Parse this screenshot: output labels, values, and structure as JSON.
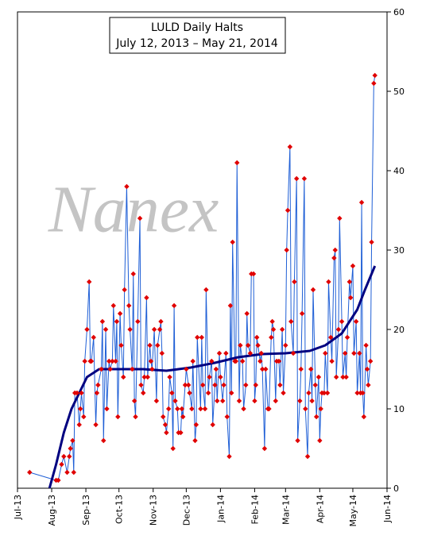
{
  "chart_data": {
    "type": "line",
    "title": "LULD Daily Halts",
    "subtitle": "July 12, 2013 – May 21, 2014",
    "watermark": "Nanex",
    "xlim": [
      0,
      335
    ],
    "xticks": [
      {
        "value": 0,
        "label": "Jul-13"
      },
      {
        "value": 31,
        "label": "Aug-13"
      },
      {
        "value": 62,
        "label": "Sep-13"
      },
      {
        "value": 92,
        "label": "Oct-13"
      },
      {
        "value": 123,
        "label": "Nov-13"
      },
      {
        "value": 153,
        "label": "Dec-13"
      },
      {
        "value": 184,
        "label": "Jan-14"
      },
      {
        "value": 215,
        "label": "Feb-14"
      },
      {
        "value": 243,
        "label": "Mar-14"
      },
      {
        "value": 274,
        "label": "Apr-14"
      },
      {
        "value": 304,
        "label": "May-14"
      },
      {
        "value": 335,
        "label": "Jun-14"
      }
    ],
    "ylim": [
      0,
      60
    ],
    "yticks": [
      0,
      10,
      20,
      30,
      40,
      50,
      60
    ],
    "series": [
      {
        "color": "#1f5fd6",
        "marker_color": "#e00000",
        "x": [
          11,
          35,
          37,
          40,
          42,
          45,
          47,
          48,
          50,
          51,
          52,
          54,
          56,
          57,
          58,
          60,
          61,
          63,
          65,
          66,
          67,
          69,
          71,
          72,
          73,
          76,
          77,
          78,
          80,
          81,
          83,
          84,
          86,
          87,
          89,
          90,
          91,
          93,
          94,
          96,
          97,
          99,
          101,
          102,
          104,
          105,
          106,
          107,
          109,
          111,
          112,
          114,
          115,
          117,
          118,
          120,
          121,
          122,
          124,
          126,
          127,
          129,
          130,
          131,
          132,
          134,
          135,
          137,
          138,
          140,
          141,
          142,
          143,
          145,
          146,
          148,
          149,
          150,
          152,
          153,
          155,
          156,
          158,
          159,
          161,
          162,
          163,
          166,
          167,
          168,
          170,
          171,
          173,
          174,
          176,
          177,
          179,
          180,
          181,
          183,
          184,
          186,
          187,
          189,
          190,
          192,
          193,
          194,
          195,
          197,
          198,
          199,
          201,
          202,
          204,
          205,
          207,
          208,
          209,
          211,
          212,
          214,
          215,
          216,
          217,
          218,
          220,
          221,
          222,
          224,
          225,
          227,
          228,
          230,
          231,
          232,
          234,
          235,
          237,
          238,
          240,
          241,
          243,
          244,
          245,
          247,
          248,
          250,
          251,
          253,
          254,
          256,
          257,
          258,
          260,
          261,
          263,
          264,
          266,
          267,
          268,
          270,
          271,
          273,
          274,
          275,
          276,
          278,
          279,
          281,
          282,
          284,
          285,
          287,
          288,
          289,
          291,
          292,
          294,
          295,
          297,
          298,
          299,
          301,
          302,
          304,
          305,
          307,
          308,
          310,
          311,
          312,
          313,
          314,
          316,
          317,
          318,
          320,
          321,
          323,
          324
        ],
        "values": [
          2,
          1,
          1,
          3,
          4,
          2,
          4,
          5,
          6,
          2,
          12,
          12,
          8,
          10,
          12,
          9,
          16,
          20,
          26,
          16,
          16,
          19,
          8,
          12,
          13,
          15,
          21,
          6,
          20,
          10,
          16,
          15,
          16,
          23,
          16,
          21,
          9,
          22,
          18,
          14,
          25,
          38,
          23,
          20,
          15,
          27,
          11,
          9,
          21,
          34,
          13,
          12,
          14,
          24,
          14,
          18,
          16,
          15,
          20,
          11,
          18,
          20,
          21,
          17,
          9,
          8,
          7,
          10,
          14,
          12,
          5,
          23,
          11,
          10,
          7,
          7,
          10,
          9,
          13,
          15,
          13,
          12,
          10,
          16,
          6,
          8,
          19,
          10,
          19,
          13,
          10,
          25,
          12,
          14,
          16,
          8,
          13,
          15,
          11,
          17,
          14,
          11,
          13,
          17,
          9,
          4,
          23,
          12,
          31,
          16,
          16,
          41,
          11,
          18,
          16,
          10,
          13,
          22,
          18,
          17,
          27,
          27,
          11,
          13,
          19,
          18,
          16,
          17,
          15,
          5,
          15,
          10,
          10,
          19,
          21,
          20,
          11,
          16,
          16,
          13,
          20,
          12,
          18,
          30,
          35,
          43,
          21,
          17,
          26,
          39,
          6,
          11,
          15,
          22,
          39,
          10,
          4,
          12,
          15,
          11,
          25,
          13,
          9,
          14,
          6,
          10,
          12,
          12,
          17,
          12,
          26,
          19,
          16,
          29,
          30,
          14,
          20,
          34,
          21,
          14,
          17,
          14,
          19,
          26,
          24,
          28,
          17,
          21,
          12,
          17,
          12,
          36,
          12,
          9,
          18,
          15,
          13,
          16,
          31,
          51,
          52
        ]
      },
      {
        "color": "#000080",
        "x": [
          29,
          35,
          42,
          49,
          56,
          63,
          74,
          92,
          114,
          135,
          157,
          179,
          200,
          222,
          243,
          265,
          279,
          294,
          308,
          315,
          324
        ],
        "values": [
          0,
          3,
          7,
          10,
          12,
          14,
          15,
          15,
          15,
          14.8,
          15.2,
          15.8,
          16.5,
          16.9,
          17,
          17.3,
          18,
          19.5,
          22.5,
          25,
          28
        ]
      }
    ]
  }
}
